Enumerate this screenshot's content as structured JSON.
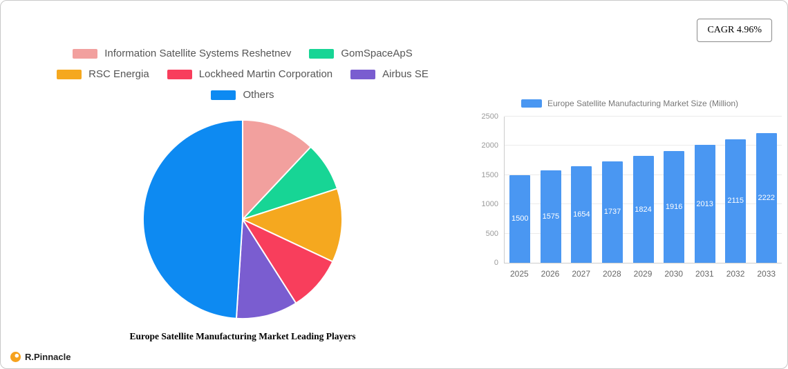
{
  "card": {
    "cagr_label": "CAGR 4.96%"
  },
  "logo": {
    "text": "R.Pinnacle"
  },
  "chart_data": [
    {
      "type": "pie",
      "title": "Europe Satellite Manufacturing Market Leading Players",
      "legend_position": "top",
      "slices": [
        {
          "label": "Information Satellite Systems Reshetnev",
          "value": 12,
          "color": "#f2a09e"
        },
        {
          "label": "GomSpaceApS",
          "value": 8,
          "color": "#17d595"
        },
        {
          "label": "RSC Energia",
          "value": 12,
          "color": "#f5a81f"
        },
        {
          "label": "Lockheed Martin Corporation",
          "value": 9,
          "color": "#f83e5c"
        },
        {
          "label": "Airbus SE",
          "value": 10,
          "color": "#7a5dd0"
        },
        {
          "label": "Others",
          "value": 49,
          "color": "#0d8af2"
        }
      ]
    },
    {
      "type": "bar",
      "legend": "Europe Satellite Manufacturing Market Size (Million)",
      "categories": [
        "2025",
        "2026",
        "2027",
        "2028",
        "2029",
        "2030",
        "2031",
        "2032",
        "2033"
      ],
      "values": [
        1500,
        1575,
        1654,
        1737,
        1824,
        1916,
        2013,
        2115,
        2222
      ],
      "ylim": [
        0,
        2500
      ],
      "yticks": [
        0,
        500,
        1000,
        1500,
        2000,
        2500
      ],
      "bar_color": "#4a97f2",
      "grid": true,
      "legend_position": "top"
    }
  ]
}
